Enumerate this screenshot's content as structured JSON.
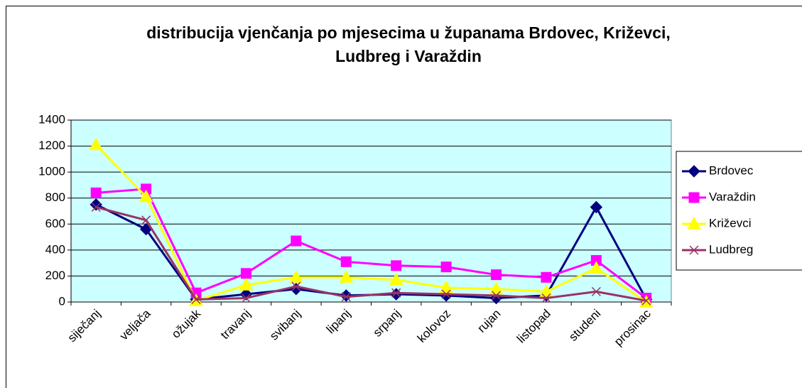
{
  "chart_data": {
    "type": "line",
    "title": "distribucija vjenčanja po mjesecima u županama Brdovec, Križevci, Ludbreg i Varaždin",
    "categories": [
      "siječanj",
      "veljača",
      "ožujak",
      "travanj",
      "svibanj",
      "lipanj",
      "srpanj",
      "kolovoz",
      "rujan",
      "listopad",
      "studeni",
      "prosinac"
    ],
    "series": [
      {
        "name": "Brdovec",
        "color": "#000080",
        "marker": "diamond",
        "values": [
          750,
          560,
          20,
          60,
          100,
          50,
          60,
          50,
          30,
          50,
          730,
          20
        ]
      },
      {
        "name": "Varaždin",
        "color": "#ff00ff",
        "marker": "square",
        "values": [
          840,
          870,
          70,
          220,
          470,
          310,
          280,
          270,
          210,
          190,
          320,
          30
        ]
      },
      {
        "name": "Križevci",
        "color": "#ffff00",
        "marker": "triangle",
        "values": [
          1210,
          810,
          10,
          130,
          190,
          190,
          170,
          110,
          100,
          80,
          260,
          0
        ]
      },
      {
        "name": "Ludbreg",
        "color": "#993366",
        "marker": "x",
        "values": [
          730,
          630,
          20,
          30,
          120,
          40,
          70,
          60,
          50,
          30,
          80,
          10
        ]
      }
    ],
    "ylim": [
      0,
      1400
    ],
    "yticks": [
      0,
      200,
      400,
      600,
      800,
      1000,
      1200,
      1400
    ],
    "grid": true,
    "legend": "right",
    "plot_background": "#ccffff"
  }
}
